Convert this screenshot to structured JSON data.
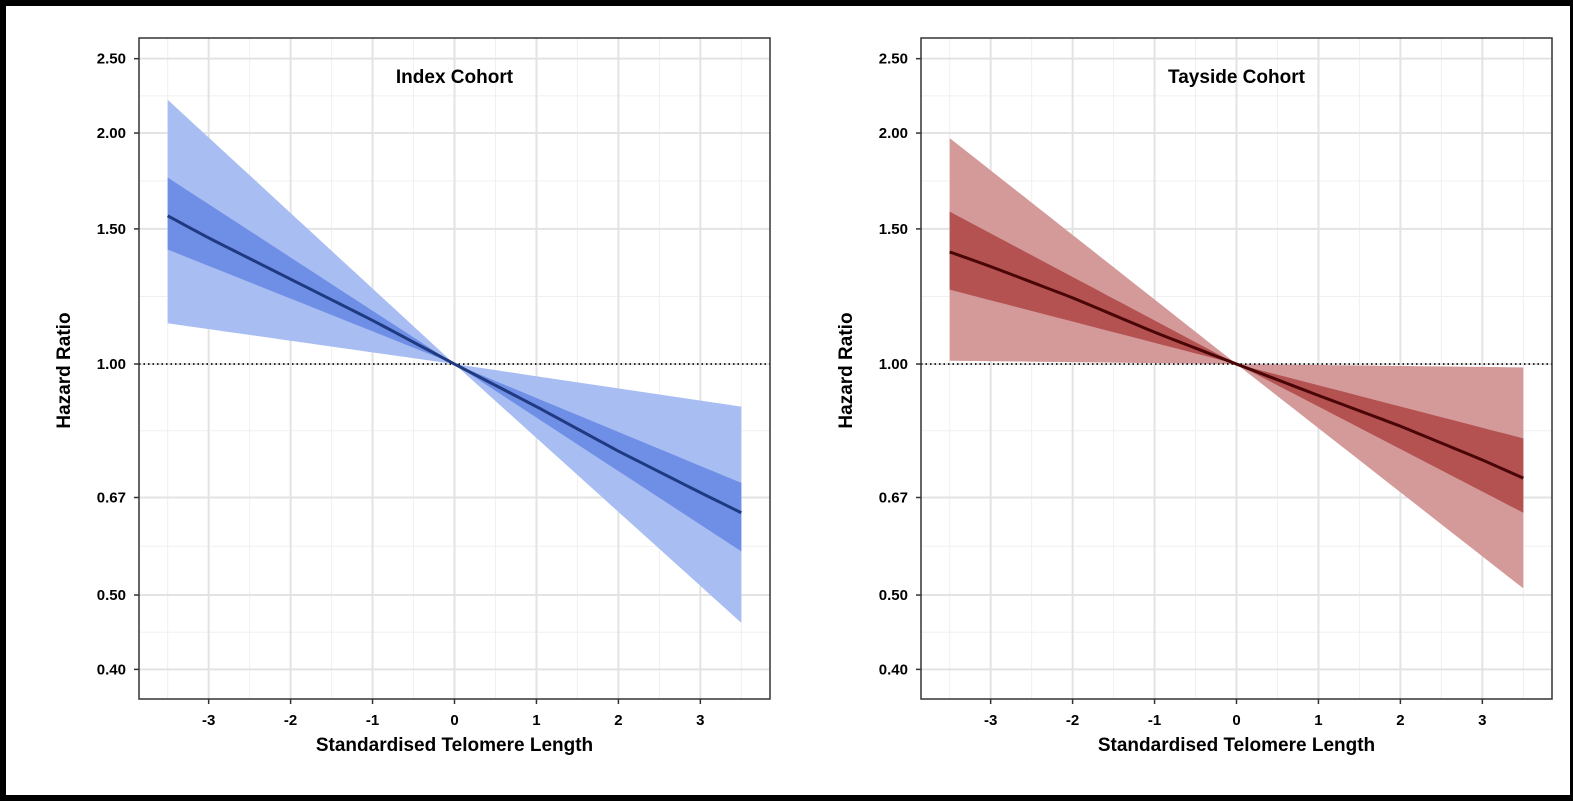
{
  "chart_data": [
    {
      "type": "line",
      "title": "Index Cohort",
      "xlabel": "Standardised Telomere Length",
      "ylabel": "Hazard Ratio",
      "xlim": [
        -3.85,
        3.85
      ],
      "ylim": [
        0.366,
        2.66
      ],
      "y_scale": "log",
      "xticks": [
        -3,
        -2,
        -1,
        0,
        1,
        2,
        3
      ],
      "xtick_labels": [
        "-3",
        "-2",
        "-1",
        "0",
        "1",
        "2",
        "3"
      ],
      "yticks": [
        0.4,
        0.5,
        0.67,
        1.0,
        1.5,
        2.0,
        2.5
      ],
      "ytick_labels": [
        "0.40",
        "0.50",
        "0.67",
        "1.00",
        "1.50",
        "2.00",
        "2.50"
      ],
      "reference_line": 1.0,
      "grid": true,
      "colors": {
        "line": "#1f3a80",
        "inner_band": "#6f8fe6",
        "outer_band": "#a8bdf2"
      },
      "series": [
        {
          "x": [
            -3.5,
            -3,
            -2,
            -1,
            0,
            1,
            2,
            3,
            3.5
          ],
          "hazard_ratio": [
            1.56,
            1.46,
            1.29,
            1.14,
            1.0,
            0.88,
            0.77,
            0.68,
            0.64
          ]
        }
      ],
      "inner_band": {
        "x": [
          -3.5,
          0,
          3.5
        ],
        "lower": [
          1.41,
          1.0,
          0.57
        ],
        "upper": [
          1.75,
          1.0,
          0.7
        ]
      },
      "outer_band": {
        "x": [
          -3.5,
          0,
          3.5
        ],
        "lower": [
          1.13,
          1.0,
          0.46
        ],
        "upper": [
          2.21,
          1.0,
          0.88
        ]
      }
    },
    {
      "type": "line",
      "title": "Tayside Cohort",
      "xlabel": "Standardised Telomere Length",
      "ylabel": "Hazard Ratio",
      "xlim": [
        -3.85,
        3.85
      ],
      "ylim": [
        0.366,
        2.66
      ],
      "y_scale": "log",
      "xticks": [
        -3,
        -2,
        -1,
        0,
        1,
        2,
        3
      ],
      "xtick_labels": [
        "-3",
        "-2",
        "-1",
        "0",
        "1",
        "2",
        "3"
      ],
      "yticks": [
        0.4,
        0.5,
        0.67,
        1.0,
        1.5,
        2.0,
        2.5
      ],
      "ytick_labels": [
        "0.40",
        "0.50",
        "0.67",
        "1.00",
        "1.50",
        "2.00",
        "2.50"
      ],
      "reference_line": 1.0,
      "grid": true,
      "colors": {
        "line": "#4a0606",
        "inner_band": "#b45252",
        "outer_band": "#d49a9a"
      },
      "series": [
        {
          "x": [
            -3.5,
            -3,
            -2,
            -1,
            0,
            1,
            2,
            3,
            3.5
          ],
          "hazard_ratio": [
            1.4,
            1.34,
            1.22,
            1.1,
            1.0,
            0.91,
            0.83,
            0.75,
            0.71
          ]
        }
      ],
      "inner_band": {
        "x": [
          -3.5,
          0,
          3.5
        ],
        "lower": [
          1.25,
          1.0,
          0.64
        ],
        "upper": [
          1.58,
          1.0,
          0.8
        ]
      },
      "outer_band": {
        "x": [
          -3.5,
          0,
          3.5
        ],
        "lower": [
          1.01,
          1.0,
          0.51
        ],
        "upper": [
          1.97,
          1.0,
          0.99
        ]
      }
    }
  ]
}
